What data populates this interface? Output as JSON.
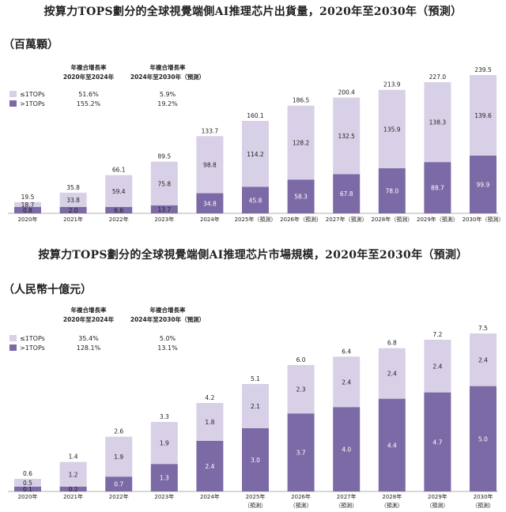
{
  "colors": {
    "low": "#d8d0e6",
    "high": "#7b6aa6",
    "text": "#222222",
    "axis": "#999999"
  },
  "chart_data": [
    {
      "type": "bar",
      "stacked": true,
      "title": "按算力TOPS劃分的全球視覺端側AI推理芯片出貨量，2020年至2030年（預測）",
      "unit": "（百萬顆）",
      "categories": [
        "2020年",
        "2021年",
        "2022年",
        "2023年",
        "2024年",
        "2025年（預測）",
        "2026年（預測）",
        "2027年（預測）",
        "2028年（預測）",
        "2029年（預測）",
        "2030年（預測）"
      ],
      "series": [
        {
          "name": "≤1TOPs",
          "values": [
            18.7,
            33.8,
            59.4,
            75.8,
            98.8,
            114.2,
            128.2,
            132.5,
            135.9,
            138.3,
            139.6
          ]
        },
        {
          "name": ">1TOPs",
          "values": [
            0.8,
            2.0,
            6.6,
            13.7,
            34.8,
            45.8,
            58.3,
            67.8,
            78.0,
            88.7,
            99.9
          ]
        }
      ],
      "totals": [
        19.5,
        35.8,
        66.1,
        89.5,
        133.7,
        160.1,
        186.5,
        200.4,
        213.9,
        227.0,
        239.5
      ],
      "ylim": [
        0,
        239.5
      ],
      "cagr": {
        "header1": "年複合增長率",
        "period1": "2020年至2024年",
        "header2": "年複合增長率",
        "period2": "2024年至2030年（預測）",
        "rows": [
          {
            "label": "≤1TOPs",
            "v1": "51.6%",
            "v2": "5.9%"
          },
          {
            "label": ">1TOPs",
            "v1": "155.2%",
            "v2": "19.2%"
          }
        ]
      }
    },
    {
      "type": "bar",
      "stacked": true,
      "title": "按算力TOPS劃分的全球視覺端側AI推理芯片市場規模，2020年至2030年（預測）",
      "unit": "（人民幣十億元）",
      "categories": [
        "2020年",
        "2021年",
        "2022年",
        "2023年",
        "2024年",
        "2025年（預測）",
        "2026年（預測）",
        "2027年（預測）",
        "2028年（預測）",
        "2029年（預測）",
        "2030年（預測）"
      ],
      "series": [
        {
          "name": "≤1TOPs",
          "values": [
            0.5,
            1.2,
            1.9,
            1.9,
            1.8,
            2.1,
            2.3,
            2.4,
            2.4,
            2.4,
            2.4
          ]
        },
        {
          "name": ">1TOPs",
          "values": [
            0.1,
            0.2,
            0.7,
            1.3,
            2.4,
            3.0,
            3.7,
            4.0,
            4.4,
            4.7,
            5.0
          ]
        }
      ],
      "totals": [
        0.6,
        1.4,
        2.6,
        3.3,
        4.2,
        5.1,
        6.0,
        6.4,
        6.8,
        7.2,
        7.5
      ],
      "ylim": [
        0,
        7.5
      ],
      "cagr": {
        "header1": "年複合增長率",
        "period1": "2020年至2024年",
        "header2": "年複合增長率",
        "period2": "2024年至2030年（預測）",
        "rows": [
          {
            "label": "≤1TOPs",
            "v1": "35.4%",
            "v2": "5.0%"
          },
          {
            "label": ">1TOPs",
            "v1": "128.1%",
            "v2": "13.1%"
          }
        ]
      }
    }
  ]
}
